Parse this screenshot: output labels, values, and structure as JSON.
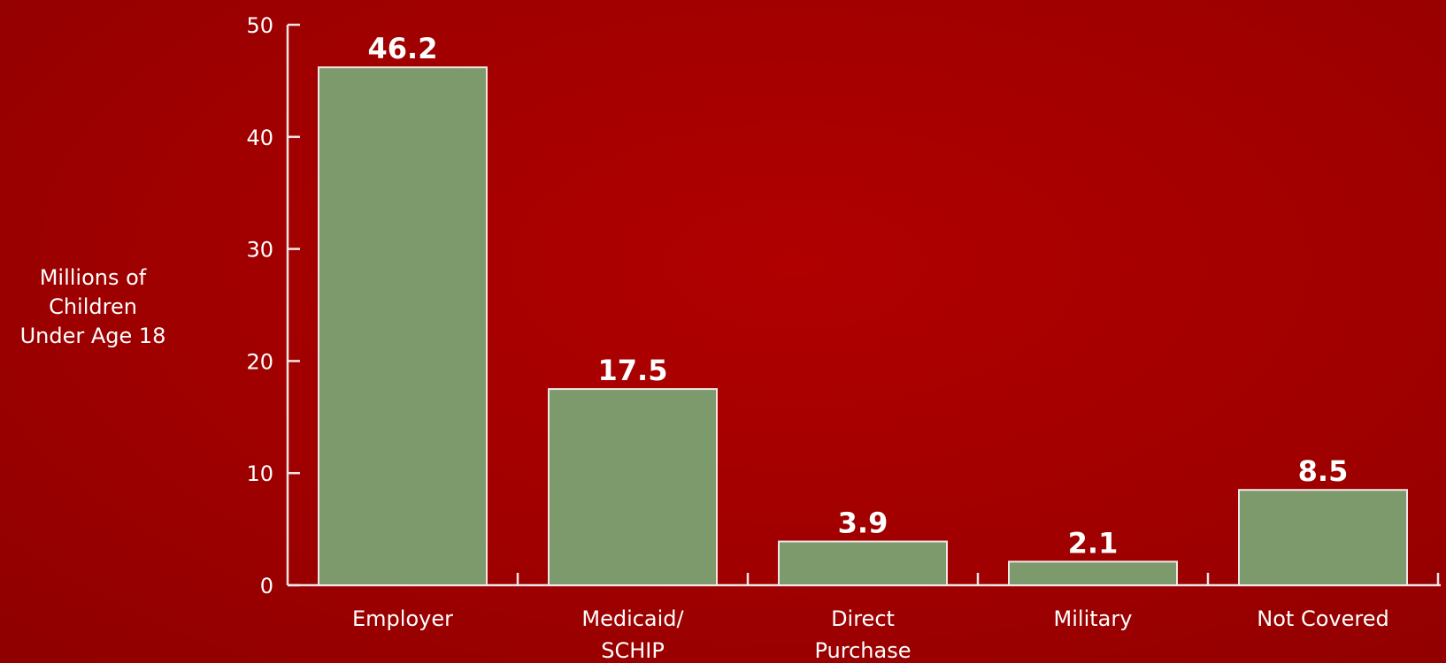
{
  "chart_data": {
    "type": "bar",
    "categories": [
      "Employer",
      "Medicaid/\nSCHIP",
      "Direct\nPurchase",
      "Military",
      "Not Covered"
    ],
    "values": [
      46.2,
      17.5,
      3.9,
      2.1,
      8.5
    ],
    "value_labels": [
      "46.2",
      "17.5",
      "3.9",
      "2.1",
      "8.5"
    ],
    "title": "",
    "xlabel": "",
    "ylabel": "Millions of\nChildren\nUnder Age 18",
    "ylim": [
      0,
      50
    ],
    "yticks": [
      0,
      10,
      20,
      30,
      40,
      50
    ],
    "grid": false,
    "legend": "none",
    "colors": {
      "background": "#a30000",
      "bar": "#7d9a6c",
      "bar_edge": "#f2e6e6",
      "axis": "#f2e6e6",
      "text": "#ffffff"
    }
  }
}
